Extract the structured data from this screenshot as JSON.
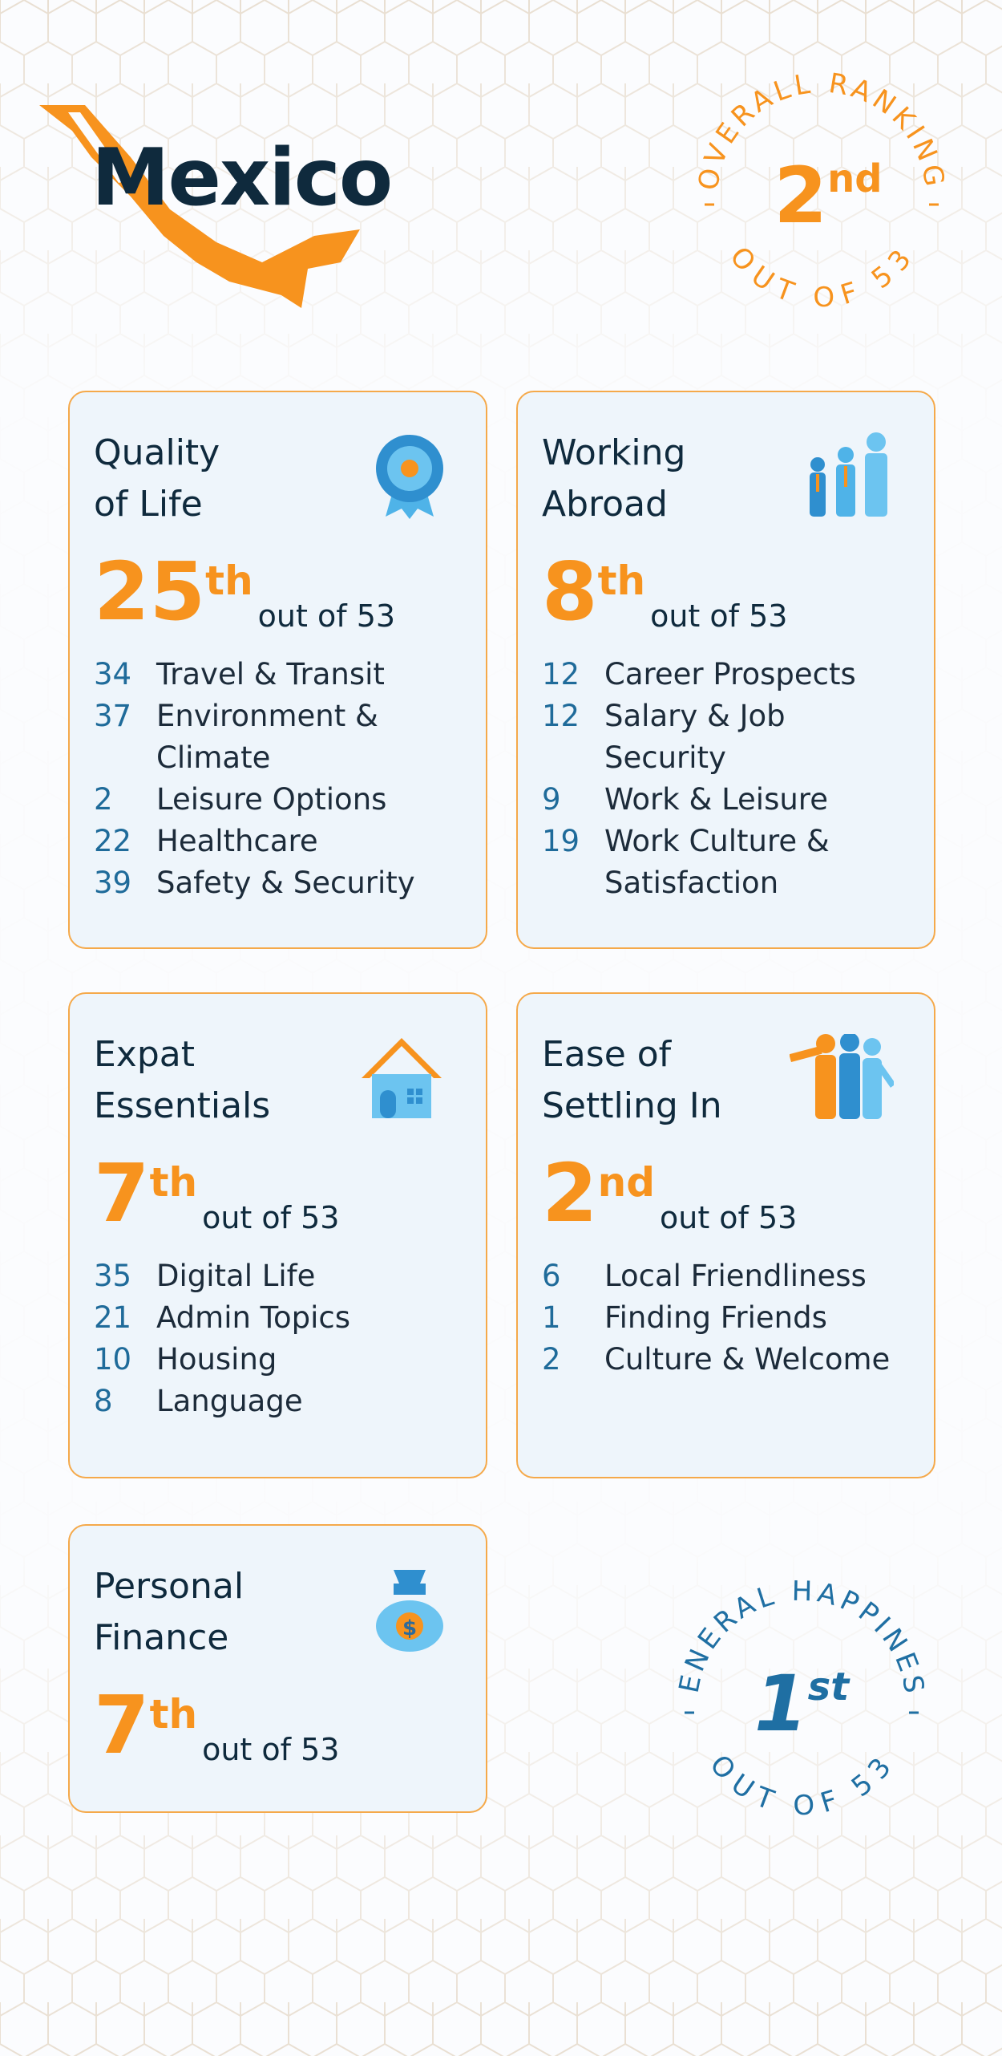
{
  "header": {
    "title": "Mexico"
  },
  "overall_badge": {
    "top_text": "OVERALL RANKING",
    "rank": 2,
    "suffix": "nd",
    "bottom_text": "OUT OF 53"
  },
  "cards": [
    {
      "title_lines": [
        "Quality",
        "of Life"
      ],
      "rank": 25,
      "suffix": "th",
      "out_of": "out of 53",
      "items": [
        {
          "rank": 34,
          "label": "Travel & Transit"
        },
        {
          "rank": 37,
          "label": "Environment & Climate"
        },
        {
          "rank": 2,
          "label": "Leisure Options"
        },
        {
          "rank": 22,
          "label": "Healthcare"
        },
        {
          "rank": 39,
          "label": "Safety & Security"
        }
      ]
    },
    {
      "title_lines": [
        "Working",
        "Abroad"
      ],
      "rank": 8,
      "suffix": "th",
      "out_of": "out of 53",
      "items": [
        {
          "rank": 12,
          "label": "Career Prospects"
        },
        {
          "rank": 12,
          "label": "Salary & Job Security"
        },
        {
          "rank": 9,
          "label": "Work & Leisure"
        },
        {
          "rank": 19,
          "label": "Work Culture & Satisfaction"
        }
      ]
    },
    {
      "title_lines": [
        "Expat",
        "Essentials"
      ],
      "rank": 7,
      "suffix": "th",
      "out_of": "out of 53",
      "items": [
        {
          "rank": 35,
          "label": "Digital Life"
        },
        {
          "rank": 21,
          "label": "Admin Topics"
        },
        {
          "rank": 10,
          "label": "Housing"
        },
        {
          "rank": 8,
          "label": "Language"
        }
      ]
    },
    {
      "title_lines": [
        "Ease of",
        "Settling In"
      ],
      "rank": 2,
      "suffix": "nd",
      "out_of": "out of 53",
      "items": [
        {
          "rank": 6,
          "label": "Local Friendliness"
        },
        {
          "rank": 1,
          "label": "Finding Friends"
        },
        {
          "rank": 2,
          "label": "Culture & Welcome"
        }
      ]
    },
    {
      "title_lines": [
        "Personal",
        "Finance"
      ],
      "rank": 7,
      "suffix": "th",
      "out_of": "out of 53",
      "items": []
    }
  ],
  "happiness_badge": {
    "top_text": "GENERAL HAPPINESS",
    "rank": 1,
    "suffix": "st",
    "bottom_text": "OUT OF 53"
  }
}
